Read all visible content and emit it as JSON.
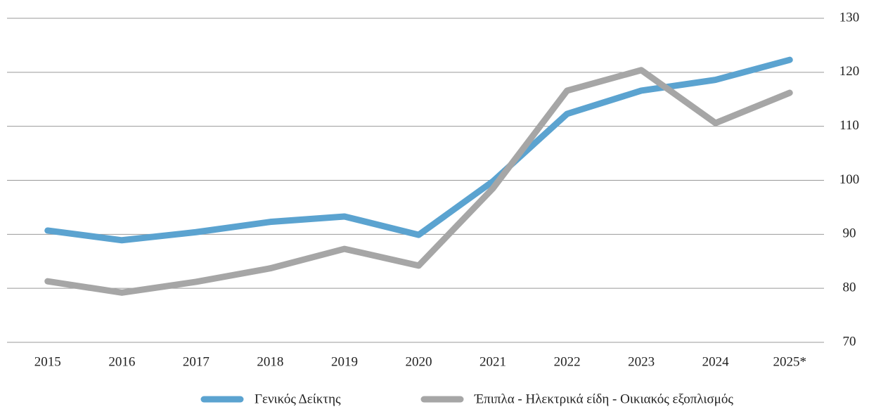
{
  "chart_data": {
    "type": "line",
    "categories": [
      "2015",
      "2016",
      "2017",
      "2018",
      "2019",
      "2020",
      "2021",
      "2022",
      "2023",
      "2024",
      "2025*"
    ],
    "series": [
      {
        "name": "Γενικός Δείκτης",
        "color": "#5ba3d0",
        "values": [
          90.7,
          88.9,
          90.4,
          92.3,
          93.3,
          89.9,
          99.8,
          112.3,
          116.6,
          118.6,
          122.3
        ]
      },
      {
        "name": "Έπιπλα - Ηλεκτρικά είδη - Οικιακός εξοπλισμός",
        "color": "#a6a6a6",
        "values": [
          81.3,
          79.2,
          81.2,
          83.7,
          87.3,
          84.2,
          98.5,
          116.6,
          120.4,
          110.6,
          116.2
        ]
      }
    ],
    "ylim": [
      70,
      130
    ],
    "yticks": [
      70,
      80,
      90,
      100,
      110,
      120,
      130
    ],
    "grid": true,
    "legend": "bottom"
  }
}
